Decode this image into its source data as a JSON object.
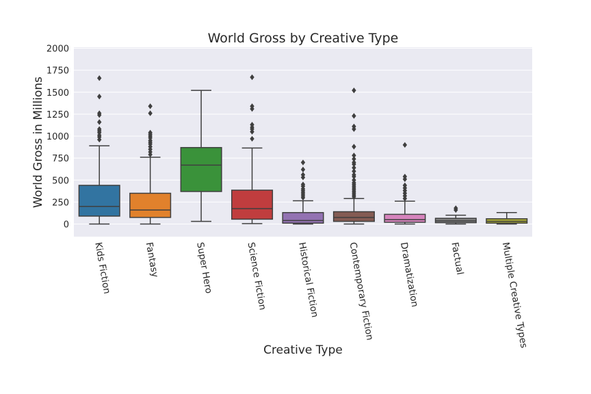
{
  "chart_data": {
    "type": "box",
    "title": "World Gross by Creative Type",
    "xlabel": "Creative Type",
    "ylabel": "World Gross in Millions",
    "ylim": [
      -150,
      2000
    ],
    "yticks": [
      0,
      250,
      500,
      750,
      1000,
      1250,
      1500,
      1750,
      2000
    ],
    "grid": true,
    "categories": [
      "Kids Fiction",
      "Fantasy",
      "Super Hero",
      "Science Fiction",
      "Historical Fiction",
      "Contemporary Fiction",
      "Dramatization",
      "Factual",
      "Multiple Creative Types"
    ],
    "colors": [
      "#3274a1",
      "#e1812c",
      "#3a923a",
      "#c03d3e",
      "#9372b2",
      "#845b53",
      "#d684bd",
      "#7f7f7f",
      "#a9aa35"
    ],
    "boxes": [
      {
        "category": "Kids Fiction",
        "whisker_low": 0,
        "q1": 90,
        "median": 200,
        "q3": 440,
        "whisker_high": 890,
        "outliers": [
          960,
          990,
          1010,
          1040,
          1060,
          1080,
          1160,
          1240,
          1260,
          1450,
          1660
        ]
      },
      {
        "category": "Fantasy",
        "whisker_low": 0,
        "q1": 75,
        "median": 160,
        "q3": 350,
        "whisker_high": 760,
        "outliers": [
          790,
          820,
          850,
          880,
          910,
          930,
          950,
          980,
          1000,
          1020,
          1040,
          1260,
          1340
        ]
      },
      {
        "category": "Super Hero",
        "whisker_low": 30,
        "q1": 370,
        "median": 670,
        "q3": 870,
        "whisker_high": 1520,
        "outliers": []
      },
      {
        "category": "Science Fiction",
        "whisker_low": 5,
        "q1": 55,
        "median": 175,
        "q3": 385,
        "whisker_high": 865,
        "outliers": [
          970,
          1050,
          1080,
          1100,
          1130,
          1310,
          1340,
          1670
        ]
      },
      {
        "category": "Historical Fiction",
        "whisker_low": 0,
        "q1": 10,
        "median": 40,
        "q3": 130,
        "whisker_high": 265,
        "outliers": [
          300,
          320,
          340,
          360,
          380,
          400,
          430,
          450,
          530,
          560,
          620,
          700
        ]
      },
      {
        "category": "Contemporary Fiction",
        "whisker_low": 0,
        "q1": 30,
        "median": 75,
        "q3": 140,
        "whisker_high": 290,
        "outliers": [
          310,
          330,
          350,
          370,
          390,
          410,
          430,
          450,
          470,
          500,
          540,
          560,
          600,
          640,
          680,
          700,
          740,
          780,
          880,
          1080,
          1110,
          1230,
          1520
        ]
      },
      {
        "category": "Dramatization",
        "whisker_low": 0,
        "q1": 20,
        "median": 50,
        "q3": 110,
        "whisker_high": 260,
        "outliers": [
          290,
          320,
          350,
          380,
          410,
          440,
          510,
          540,
          900
        ]
      },
      {
        "category": "Factual",
        "whisker_low": 0,
        "q1": 15,
        "median": 35,
        "q3": 65,
        "whisker_high": 100,
        "outliers": [
          160,
          180
        ]
      },
      {
        "category": "Multiple Creative Types",
        "whisker_low": 0,
        "q1": 10,
        "median": 30,
        "q3": 60,
        "whisker_high": 130,
        "outliers": []
      }
    ]
  }
}
